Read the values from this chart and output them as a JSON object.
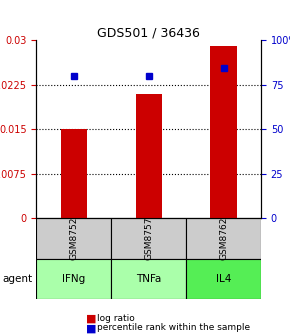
{
  "title": "GDS501 / 36436",
  "samples": [
    "GSM8752",
    "GSM8757",
    "GSM8762"
  ],
  "agents": [
    "IFNg",
    "TNFa",
    "IL4"
  ],
  "log_ratios": [
    0.015,
    0.021,
    0.029
  ],
  "percentile_ranks": [
    0.8,
    0.8,
    0.845
  ],
  "bar_color": "#cc0000",
  "dot_color": "#0000cc",
  "ylim_left": [
    0,
    0.03
  ],
  "ylim_right": [
    0,
    1.0
  ],
  "yticks_left": [
    0,
    0.0075,
    0.015,
    0.0225,
    0.03
  ],
  "ytick_labels_left": [
    "0",
    "0.0075",
    "0.015",
    "0.0225",
    "0.03"
  ],
  "yticks_right": [
    0,
    0.25,
    0.5,
    0.75,
    1.0
  ],
  "ytick_labels_right": [
    "0",
    "25",
    "50",
    "75",
    "100%"
  ],
  "agent_colors": [
    "#aaffaa",
    "#aaffaa",
    "#55ee55"
  ],
  "sample_bg_color": "#cccccc",
  "grid_color": "#000000",
  "dotted_grid_color": "#555555",
  "bar_width": 0.35
}
